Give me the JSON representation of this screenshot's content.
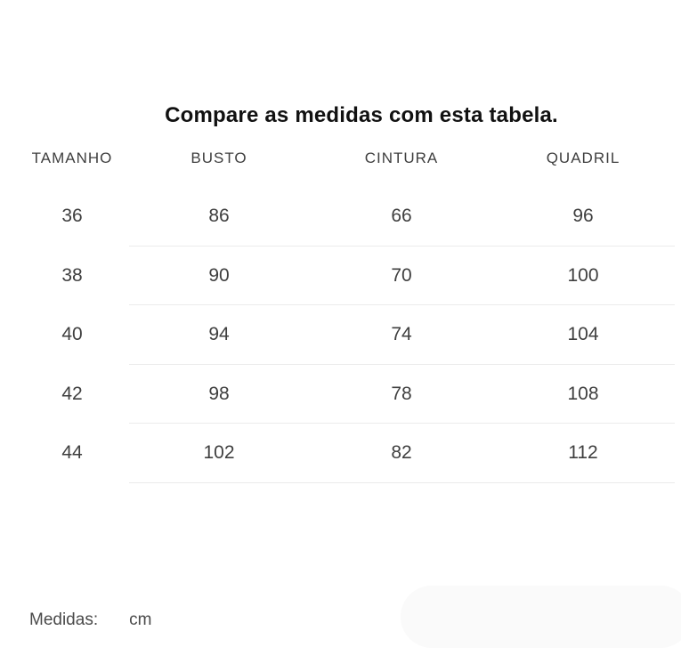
{
  "page": {
    "title": "Compare as medidas com esta tabela."
  },
  "size_table": {
    "columns": [
      "TAMANHO",
      "BUSTO",
      "CINTURA",
      "QUADRIL"
    ],
    "rows": [
      [
        "36",
        "86",
        "66",
        "96"
      ],
      [
        "38",
        "90",
        "70",
        "100"
      ],
      [
        "40",
        "94",
        "74",
        "104"
      ],
      [
        "42",
        "98",
        "78",
        "108"
      ],
      [
        "44",
        "102",
        "82",
        "112"
      ]
    ]
  },
  "footer": {
    "label": "Medidas:",
    "unit": "cm"
  },
  "colors": {
    "title_text": "#111111",
    "table_text": "#3f3f3f",
    "divider": "#ebebeb",
    "pill_background": "#fafafa",
    "page_background": "#ffffff"
  }
}
